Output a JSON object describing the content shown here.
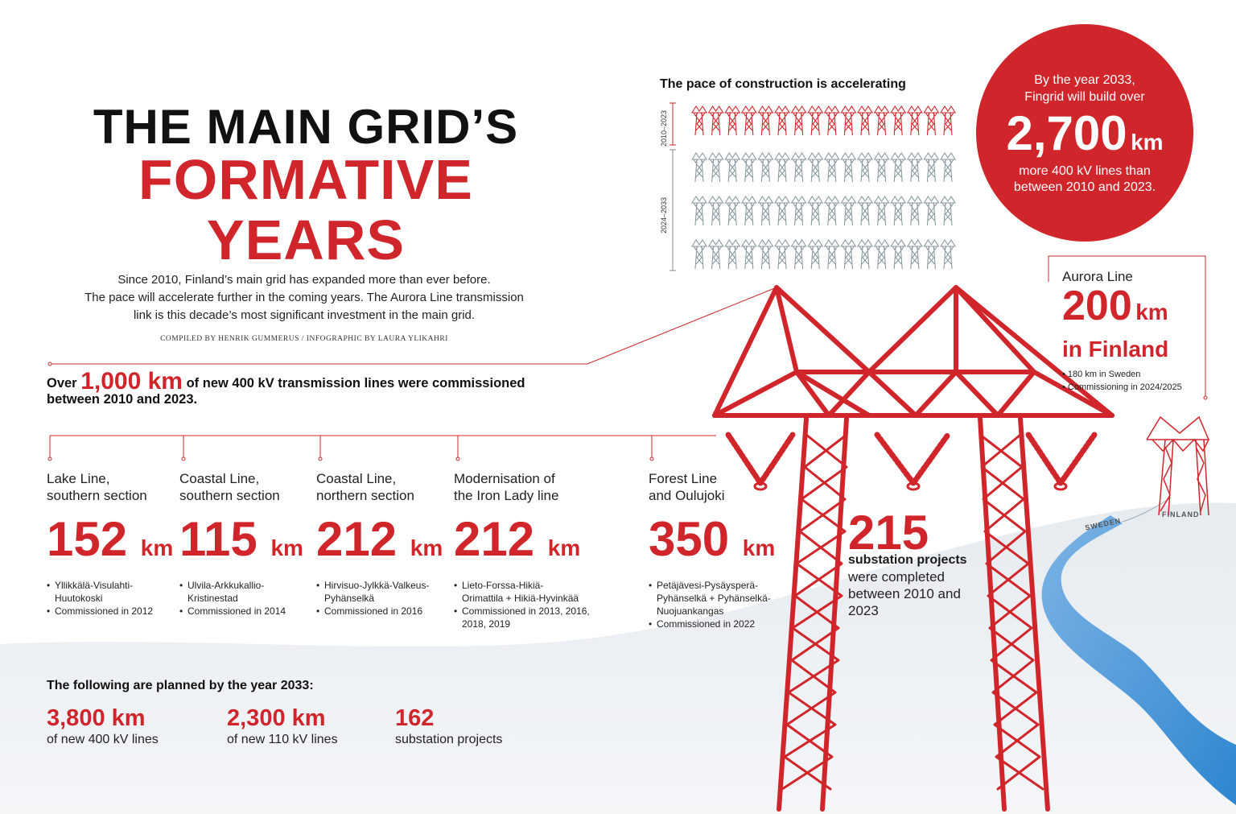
{
  "title": {
    "line1": "THE MAIN GRID’S",
    "line2": "FORMATIVE",
    "line3": "YEARS"
  },
  "intro": {
    "line1": "Since 2010, Finland’s main grid has expanded more than ever before.",
    "line2": "The pace will accelerate further in the coming years. The Aurora Line transmission",
    "line3": "link is this decade’s most significant investment in the main grid."
  },
  "credit": "COMPILED BY HENRIK GUMMERUS / INFOGRAPHIC BY LAURA YLIKAHRI",
  "pace": {
    "title": "The pace of construction is accelerating",
    "period1": "2010–2023",
    "period2": "2024–2033",
    "period1_towers": 16,
    "period2_towers": 59
  },
  "circle": {
    "line1": "By the year 2033,",
    "line2": "Fingrid will build over",
    "value": "2,700",
    "unit": "km",
    "line3": "more 400 kV lines than",
    "line4": "between 2010 and 2023."
  },
  "aurora": {
    "name": "Aurora Line",
    "value": "200",
    "unit": "km",
    "where": "in Finland",
    "bullet1": "180 km in Sweden",
    "bullet2": "Commissioning in 2024/2025"
  },
  "over": {
    "pre": "Over",
    "value": "1,000 km",
    "post": "of new 400 kV transmission lines were commissioned",
    "line2": "between 2010 and 2023."
  },
  "projects": [
    {
      "name1": "Lake Line,",
      "name2": "southern section",
      "value": "152",
      "unit": "km",
      "b1": "Yllikkälä-Visulahti-",
      "b1b": "Huutokoski",
      "b2": "Commissioned in 2012",
      "b2b": ""
    },
    {
      "name1": "Coastal Line,",
      "name2": "southern section",
      "value": "115",
      "unit": "km",
      "b1": "Ulvila-Arkkukallio-",
      "b1b": "Kristinestad",
      "b2": "Commissioned in 2014",
      "b2b": ""
    },
    {
      "name1": "Coastal Line,",
      "name2": "northern section",
      "value": "212",
      "unit": "km",
      "b1": "Hirvisuo-Jylkkä-Valkeus-",
      "b1b": "Pyhänselkä",
      "b2": "Commissioned in 2016",
      "b2b": ""
    },
    {
      "name1": "Modernisation of",
      "name2": "the Iron Lady line",
      "value": "212",
      "unit": "km",
      "b1": "Lieto-Forssa-Hikiä-",
      "b1b": "Orimattila + Hikiä-Hyvinkää",
      "b2": "Commissioned in 2013, 2016,",
      "b2b": "2018, 2019"
    },
    {
      "name1": "Forest Line",
      "name2": "and Oulujoki",
      "value": "350",
      "unit": "km",
      "b1": "Petäjävesi-Pysäysperä-",
      "b1b": "Pyhänselkä + Pyhänselkä-Nuojuankangas",
      "b2": "Commissioned in 2022",
      "b2b": ""
    }
  ],
  "substations": {
    "value": "215",
    "label1": "substation projects",
    "label2": "were completed",
    "label3": "between 2010 and",
    "label4": "2023"
  },
  "map": {
    "sweden": "SWEDEN",
    "finland": "FINLAND"
  },
  "planned": {
    "title": "The following are planned by the year 2033:",
    "items": [
      {
        "value": "3,800 km",
        "desc": "of new 400 kV lines"
      },
      {
        "value": "2,300 km",
        "desc": "of new 110 kV lines"
      },
      {
        "value": "162",
        "desc": "substation projects"
      }
    ]
  },
  "colors": {
    "accent": "#d0262b",
    "river": "#4a9ad8",
    "ground": "#dfe6ed"
  }
}
